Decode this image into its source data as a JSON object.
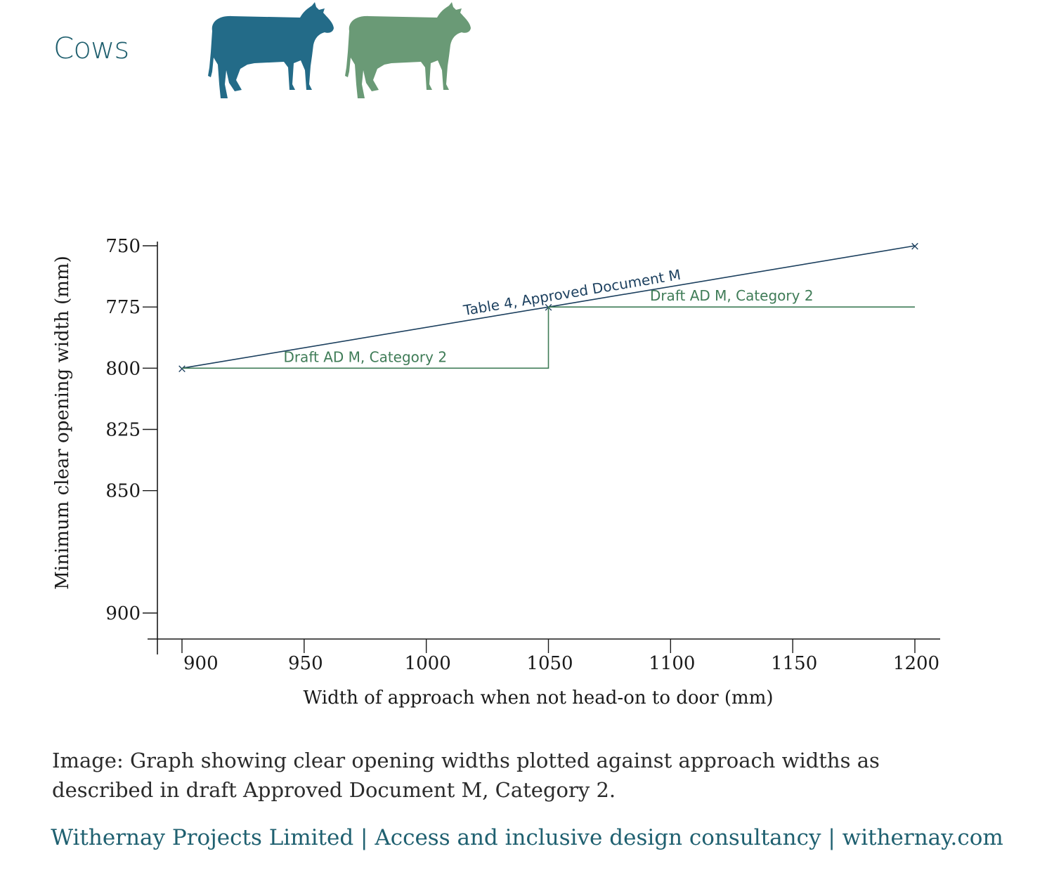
{
  "brand": {
    "title": "Cows"
  },
  "colors": {
    "blue_series": "#1b3f5e",
    "green_series": "#3f7c57",
    "cow_blue": "#236b88",
    "cow_green": "#6a9a76",
    "footer_text": "#1f6070"
  },
  "chart_data": {
    "type": "line",
    "xlabel": "Width of approach when not head-on to door (mm)",
    "ylabel": "Minimum clear opening width (mm)",
    "x_ticks": [
      900,
      950,
      1000,
      1050,
      1100,
      1150,
      1200
    ],
    "y_ticks": [
      750,
      775,
      800,
      825,
      850,
      900
    ],
    "xlim": [
      890,
      1210
    ],
    "ylim": [
      910,
      750
    ],
    "y_inverted": true,
    "series": [
      {
        "name": "Table 4, Approved Document M",
        "color": "#1b3f5e",
        "x": [
          900,
          1050,
          1200
        ],
        "y": [
          800,
          775,
          750
        ],
        "markers": true
      },
      {
        "name": "Draft AD M, Category 2",
        "color": "#3f7c57",
        "x": [
          900,
          1050,
          1050,
          1200
        ],
        "y": [
          800,
          800,
          775,
          775
        ],
        "step": true
      }
    ],
    "annotations": [
      {
        "text": "Table 4, Approved Document M",
        "series": 0,
        "x": 1060
      },
      {
        "text": "Draft AD M, Category 2",
        "series": 1,
        "x": 975,
        "y": 800
      },
      {
        "text": "Draft AD M, Category 2",
        "series": 1,
        "x": 1125,
        "y": 775
      }
    ]
  },
  "caption": "Image: Graph showing clear opening widths plotted against approach widths as described in draft Approved Document M, Category 2.",
  "footer": {
    "company": "Withernay Projects Limited",
    "tagline": "Access and inclusive design consultancy",
    "website": "withernay.com",
    "separator": " | "
  }
}
